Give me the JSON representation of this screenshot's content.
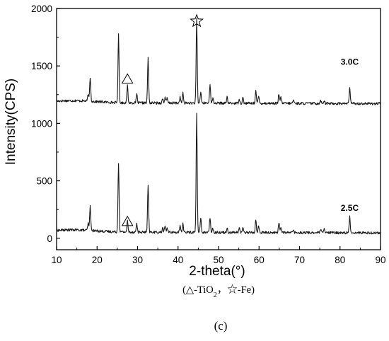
{
  "chart_data": {
    "type": "line",
    "xlabel": "2-theta(°)",
    "ylabel": "Intensity(CPS)",
    "xlim": [
      10,
      90
    ],
    "ylim": [
      -100,
      2000
    ],
    "xticks": [
      10,
      20,
      30,
      40,
      50,
      60,
      70,
      80,
      90
    ],
    "yticks": [
      0,
      500,
      1000,
      1500,
      2000
    ],
    "grid": false,
    "note": {
      "prefix": "(",
      "triangle_symbol": "△",
      "triangle_text": "-TiO",
      "triangle_sub": "2",
      "separator": "，",
      "star_symbol": "☆",
      "star_text": "-Fe)"
    },
    "panel_label": "(c)",
    "series": [
      {
        "name": "3.0C",
        "color": "#1a1a1a",
        "baseline": 1180,
        "peaks": [
          [
            17.8,
            60
          ],
          [
            18.3,
            210
          ],
          [
            25.3,
            590
          ],
          [
            27.5,
            150
          ],
          [
            29.8,
            75
          ],
          [
            32.6,
            390
          ],
          [
            36.2,
            40
          ],
          [
            36.8,
            50
          ],
          [
            37.3,
            40
          ],
          [
            40.5,
            50
          ],
          [
            41.2,
            85
          ],
          [
            44.6,
            730
          ],
          [
            45.6,
            100
          ],
          [
            47.9,
            170
          ],
          [
            48.6,
            40
          ],
          [
            52.1,
            50
          ],
          [
            55.1,
            40
          ],
          [
            56.0,
            50
          ],
          [
            59.2,
            110
          ],
          [
            59.9,
            60
          ],
          [
            64.9,
            85
          ],
          [
            65.4,
            50
          ],
          [
            68.5,
            30
          ],
          [
            75.2,
            30
          ],
          [
            76.1,
            30
          ],
          [
            82.4,
            145
          ]
        ],
        "annotations": [
          {
            "symbol": "triangle",
            "x": 27.5,
            "y": 1390
          },
          {
            "symbol": "star",
            "x": 44.6,
            "y": 1890
          },
          {
            "text": "3.0C",
            "x": 82.4,
            "y": 1540
          }
        ]
      },
      {
        "name": "2.5C",
        "color": "#1a1a1a",
        "baseline": 55,
        "peaks": [
          [
            17.8,
            60
          ],
          [
            18.3,
            215
          ],
          [
            25.3,
            605
          ],
          [
            27.5,
            95
          ],
          [
            29.8,
            75
          ],
          [
            32.6,
            405
          ],
          [
            36.2,
            40
          ],
          [
            36.8,
            55
          ],
          [
            37.3,
            40
          ],
          [
            40.5,
            50
          ],
          [
            41.2,
            80
          ],
          [
            44.6,
            1030
          ],
          [
            45.6,
            125
          ],
          [
            47.9,
            130
          ],
          [
            48.6,
            40
          ],
          [
            52.1,
            40
          ],
          [
            55.1,
            40
          ],
          [
            56.0,
            50
          ],
          [
            59.2,
            110
          ],
          [
            59.9,
            60
          ],
          [
            64.9,
            90
          ],
          [
            65.4,
            50
          ],
          [
            68.5,
            30
          ],
          [
            75.2,
            30
          ],
          [
            76.1,
            30
          ],
          [
            82.4,
            140
          ]
        ],
        "annotations": [
          {
            "symbol": "triangle",
            "x": 27.5,
            "y": 150
          },
          {
            "text": "2.5C",
            "x": 82.4,
            "y": 270
          }
        ]
      }
    ]
  }
}
